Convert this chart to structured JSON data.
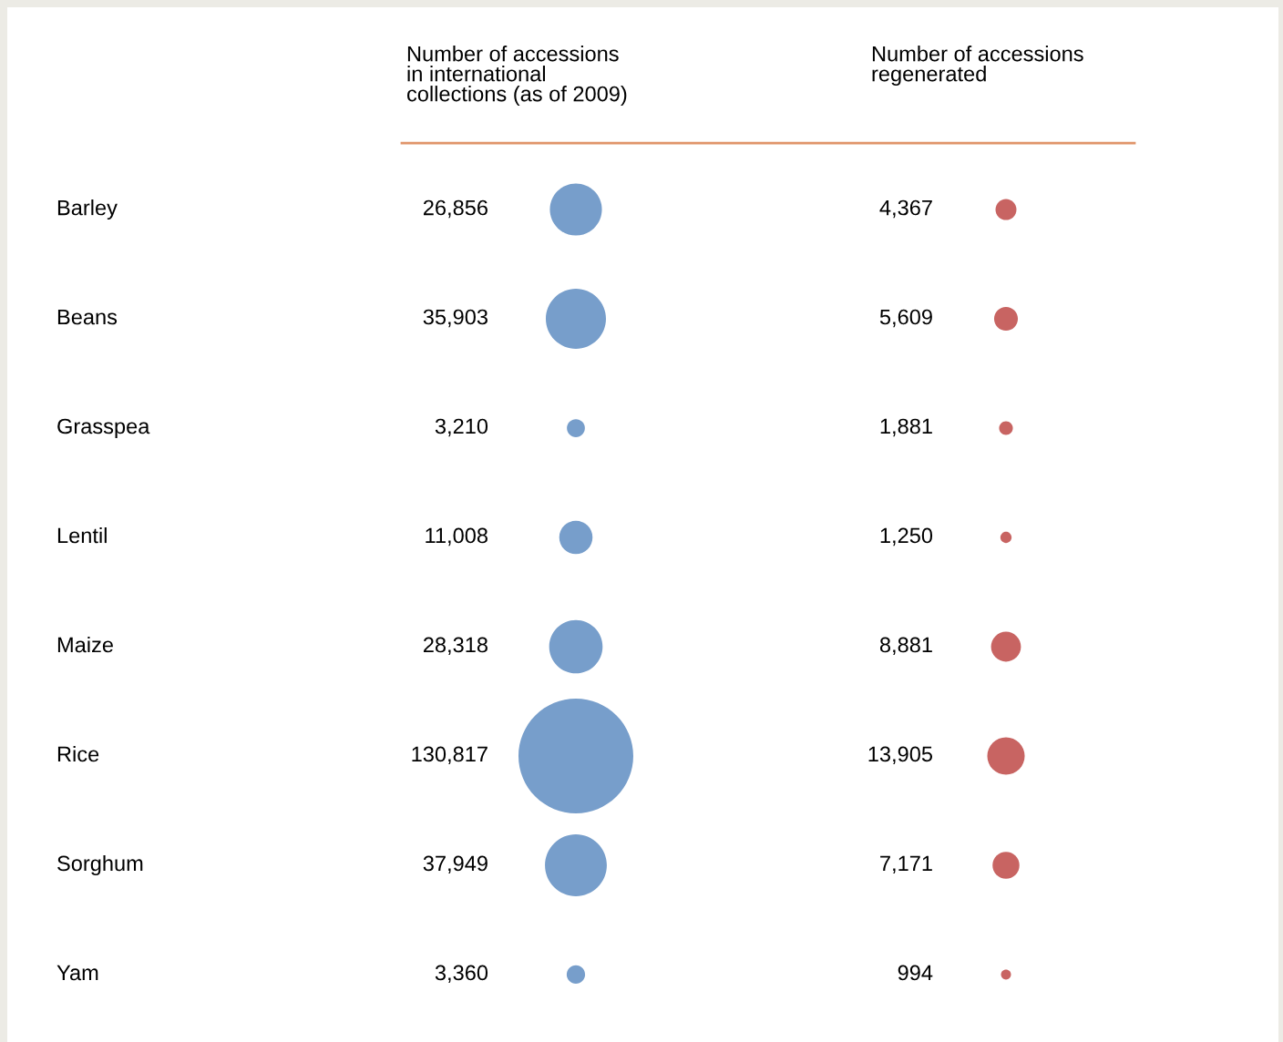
{
  "chart_data": {
    "type": "other",
    "annotations": [
      "Number of accessions\nin international\ncollections (as of 2009)",
      "Number of accessions\nregenerated"
    ],
    "categories": [
      "Barley",
      "Beans",
      "Grasspea",
      "Lentil",
      "Maize",
      "Rice",
      "Sorghum",
      "Yam"
    ],
    "series": [
      {
        "color": "#779ecb",
        "values": [
          26856,
          35903,
          3210,
          11008,
          28318,
          130817,
          37949,
          3360
        ],
        "value_labels": [
          "26,856",
          "35,903",
          "3,210",
          "11,008",
          "28,318",
          "130,817",
          "37,949",
          "3,360"
        ]
      },
      {
        "color": "#c86462",
        "values": [
          4367,
          5609,
          1881,
          1250,
          8881,
          13905,
          7171,
          994
        ],
        "value_labels": [
          "4,367",
          "5,609",
          "1,881",
          "1,250",
          "8,881",
          "13,905",
          "7,171",
          "994"
        ]
      }
    ]
  }
}
